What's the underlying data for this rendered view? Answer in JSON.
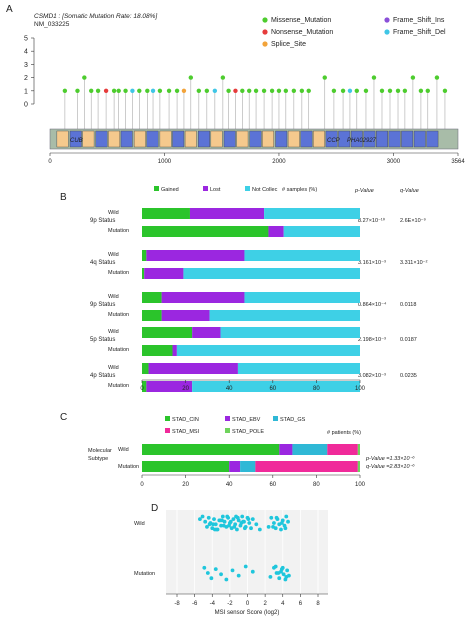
{
  "panel_a": {
    "letter": "A",
    "gene_title": "CSMD1 : [Somatic Mutation Rate: 18.08%]",
    "transcript": "NM_033225",
    "legend": [
      {
        "label": "Missense_Mutation",
        "color": "#4dcc2e"
      },
      {
        "label": "Frame_Shift_Ins",
        "color": "#8a4fd8"
      },
      {
        "label": "Nonsense_Mutation",
        "color": "#e63b3b"
      },
      {
        "label": "Frame_Shift_Del",
        "color": "#3fc6e6"
      },
      {
        "label": "Splice_Site",
        "color": "#f2a33a"
      }
    ],
    "domain_labels": [
      "CUB",
      "CCP",
      "PHA02927"
    ],
    "domain_colors": {
      "backbone": "#a8bca8",
      "cub": "#f5c98d",
      "ccp": "#5b73d6"
    }
  },
  "panel_b": {
    "letter": "B",
    "legend": [
      {
        "label": "Gained",
        "color": "#2bc42b"
      },
      {
        "label": "Lost",
        "color": "#9b27e0"
      },
      {
        "label": "Not Collec",
        "color": "#3ed0e6"
      }
    ],
    "samples_label": "# samples (%)",
    "pvalue_header": "p-Value",
    "qvalue_header": "q-Value"
  },
  "panel_c": {
    "letter": "C",
    "legend": [
      {
        "label": "STAD_CIN",
        "color": "#2bc42b"
      },
      {
        "label": "STAD_EBV",
        "color": "#9b27e0"
      },
      {
        "label": "STAD_GS",
        "color": "#2fb8d6"
      },
      {
        "label": "STAD_MSI",
        "color": "#f02a9a"
      },
      {
        "label": "STAD_POLE",
        "color": "#6fd35c"
      }
    ],
    "group_label": "Molecular Subtype",
    "patients_label": "# patients (%)",
    "pvalue_text": "p-Value =1.33×10⁻⁶",
    "qvalue_text": "q-Value =2.83×10⁻⁶"
  },
  "panel_d": {
    "letter": "D",
    "xlabel": "MSI sensor Score (log2)",
    "point_color": "#1fc6dc"
  },
  "chart_data": [
    {
      "type": "scatter",
      "panel": "A",
      "x_range": [
        0,
        3564
      ],
      "y_range": [
        0,
        5
      ],
      "x_ticks": [
        0,
        1000,
        2000,
        3000,
        3564
      ],
      "y_ticks": [
        0,
        1,
        2,
        3,
        4,
        5
      ],
      "mutations": [
        {
          "x": 130,
          "y": 1,
          "type": "Missense_Mutation"
        },
        {
          "x": 240,
          "y": 1,
          "type": "Missense_Mutation"
        },
        {
          "x": 300,
          "y": 2,
          "type": "Missense_Mutation"
        },
        {
          "x": 360,
          "y": 1,
          "type": "Missense_Mutation"
        },
        {
          "x": 420,
          "y": 1,
          "type": "Missense_Mutation"
        },
        {
          "x": 490,
          "y": 1,
          "type": "Nonsense_Mutation"
        },
        {
          "x": 560,
          "y": 1,
          "type": "Missense_Mutation"
        },
        {
          "x": 600,
          "y": 1,
          "type": "Missense_Mutation"
        },
        {
          "x": 660,
          "y": 1,
          "type": "Missense_Mutation"
        },
        {
          "x": 720,
          "y": 1,
          "type": "Frame_Shift_Del"
        },
        {
          "x": 780,
          "y": 1,
          "type": "Missense_Mutation"
        },
        {
          "x": 850,
          "y": 1,
          "type": "Missense_Mutation"
        },
        {
          "x": 900,
          "y": 1,
          "type": "Frame_Shift_Del"
        },
        {
          "x": 960,
          "y": 1,
          "type": "Missense_Mutation"
        },
        {
          "x": 1040,
          "y": 1,
          "type": "Missense_Mutation"
        },
        {
          "x": 1110,
          "y": 1,
          "type": "Missense_Mutation"
        },
        {
          "x": 1170,
          "y": 1,
          "type": "Splice_Site"
        },
        {
          "x": 1230,
          "y": 2,
          "type": "Missense_Mutation"
        },
        {
          "x": 1300,
          "y": 1,
          "type": "Missense_Mutation"
        },
        {
          "x": 1370,
          "y": 1,
          "type": "Missense_Mutation"
        },
        {
          "x": 1440,
          "y": 1,
          "type": "Frame_Shift_Del"
        },
        {
          "x": 1510,
          "y": 2,
          "type": "Missense_Mutation"
        },
        {
          "x": 1560,
          "y": 1,
          "type": "Missense_Mutation"
        },
        {
          "x": 1620,
          "y": 1,
          "type": "Nonsense_Mutation"
        },
        {
          "x": 1680,
          "y": 1,
          "type": "Missense_Mutation"
        },
        {
          "x": 1740,
          "y": 1,
          "type": "Missense_Mutation"
        },
        {
          "x": 1800,
          "y": 1,
          "type": "Missense_Mutation"
        },
        {
          "x": 1870,
          "y": 1,
          "type": "Missense_Mutation"
        },
        {
          "x": 1940,
          "y": 1,
          "type": "Missense_Mutation"
        },
        {
          "x": 2000,
          "y": 1,
          "type": "Missense_Mutation"
        },
        {
          "x": 2060,
          "y": 1,
          "type": "Missense_Mutation"
        },
        {
          "x": 2130,
          "y": 1,
          "type": "Missense_Mutation"
        },
        {
          "x": 2200,
          "y": 1,
          "type": "Missense_Mutation"
        },
        {
          "x": 2260,
          "y": 1,
          "type": "Missense_Mutation"
        },
        {
          "x": 2400,
          "y": 2,
          "type": "Missense_Mutation"
        },
        {
          "x": 2480,
          "y": 1,
          "type": "Missense_Mutation"
        },
        {
          "x": 2560,
          "y": 1,
          "type": "Missense_Mutation"
        },
        {
          "x": 2620,
          "y": 1,
          "type": "Frame_Shift_Del"
        },
        {
          "x": 2680,
          "y": 1,
          "type": "Missense_Mutation"
        },
        {
          "x": 2760,
          "y": 1,
          "type": "Missense_Mutation"
        },
        {
          "x": 2830,
          "y": 2,
          "type": "Missense_Mutation"
        },
        {
          "x": 2900,
          "y": 1,
          "type": "Missense_Mutation"
        },
        {
          "x": 2970,
          "y": 1,
          "type": "Missense_Mutation"
        },
        {
          "x": 3040,
          "y": 1,
          "type": "Missense_Mutation"
        },
        {
          "x": 3100,
          "y": 1,
          "type": "Missense_Mutation"
        },
        {
          "x": 3170,
          "y": 2,
          "type": "Missense_Mutation"
        },
        {
          "x": 3240,
          "y": 1,
          "type": "Missense_Mutation"
        },
        {
          "x": 3300,
          "y": 1,
          "type": "Missense_Mutation"
        },
        {
          "x": 3380,
          "y": 2,
          "type": "Missense_Mutation"
        },
        {
          "x": 3450,
          "y": 1,
          "type": "Missense_Mutation"
        }
      ]
    },
    {
      "type": "bar",
      "panel": "B",
      "stacked": true,
      "orientation": "horizontal",
      "x_range": [
        0,
        100
      ],
      "x_ticks": [
        0,
        20,
        40,
        60,
        80,
        100
      ],
      "groups": [
        {
          "name": "9p Status",
          "pvalue": "8.27×10⁻¹⁰",
          "qvalue": "2.6E×10⁻⁹",
          "rows": [
            {
              "label": "Wild",
              "values": [
                22,
                34,
                44
              ]
            },
            {
              "label": "Mutation",
              "values": [
                58,
                7,
                35
              ]
            }
          ]
        },
        {
          "name": "4q Status",
          "pvalue": "3.161×10⁻³",
          "qvalue": "3.311×10⁻²",
          "rows": [
            {
              "label": "Wild",
              "values": [
                2,
                45,
                53
              ]
            },
            {
              "label": "Mutation",
              "values": [
                1,
                18,
                81
              ]
            }
          ]
        },
        {
          "name": "9p Status",
          "pvalue": "0.864×10⁻⁴",
          "qvalue": "0.0118",
          "rows": [
            {
              "label": "Wild",
              "values": [
                9,
                38,
                53
              ]
            },
            {
              "label": "Mutation",
              "values": [
                9,
                22,
                69
              ]
            }
          ]
        },
        {
          "name": "5p Status",
          "pvalue": "2.198×10⁻³",
          "qvalue": "0.0187",
          "rows": [
            {
              "label": "Wild",
              "values": [
                23,
                13,
                64
              ]
            },
            {
              "label": "Mutation",
              "values": [
                14,
                2,
                84
              ]
            }
          ]
        },
        {
          "name": "4p Status",
          "pvalue": "3.082×10⁻³",
          "qvalue": "0.0235",
          "rows": [
            {
              "label": "Wild",
              "values": [
                3,
                41,
                56
              ]
            },
            {
              "label": "Mutation",
              "values": [
                2,
                21,
                77
              ]
            }
          ]
        }
      ]
    },
    {
      "type": "bar",
      "panel": "C",
      "stacked": true,
      "orientation": "horizontal",
      "x_range": [
        0,
        100
      ],
      "x_ticks": [
        0,
        20,
        40,
        60,
        80,
        100
      ],
      "rows": [
        {
          "label": "Wild",
          "values": [
            63,
            6,
            16,
            14,
            1
          ]
        },
        {
          "label": "Mutation",
          "values": [
            40,
            5,
            7,
            47,
            1
          ]
        }
      ]
    },
    {
      "type": "scatter",
      "panel": "D",
      "x_range": [
        -8,
        8
      ],
      "x_ticks": [
        -8,
        -6,
        -4,
        -2,
        0,
        2,
        4,
        6,
        8
      ],
      "categories": [
        "Wild",
        "Mutation"
      ],
      "wild_x": [
        -5.1,
        -4.8,
        -4.6,
        -4.4,
        -4.2,
        -4.0,
        -3.8,
        -3.6,
        -3.4,
        -3.2,
        -3.0,
        -2.8,
        -2.6,
        -2.4,
        -2.2,
        -2.0,
        -1.8,
        -1.6,
        -1.4,
        -1.2,
        -1.0,
        -0.8,
        -0.6,
        -0.4,
        -0.2,
        0.0,
        0.2,
        0.4,
        0.6,
        -3.9,
        -3.5,
        -3.1,
        -2.7,
        -2.3,
        -1.9,
        -1.5,
        -1.1,
        -0.7,
        -0.3,
        0.1,
        -4.3,
        -3.7,
        -2.9,
        -2.1,
        -1.3,
        -0.5,
        2.4,
        2.7,
        3.0,
        3.2,
        3.4,
        3.6,
        3.8,
        4.0,
        4.2,
        4.4,
        4.6,
        2.9,
        3.3,
        3.9,
        4.3,
        -5.4,
        1.0,
        1.4
      ],
      "mutation_x": [
        -4.9,
        -4.5,
        -4.1,
        -3.6,
        -3.0,
        -2.4,
        -1.7,
        -1.0,
        -0.2,
        0.6,
        2.6,
        3.0,
        3.3,
        3.6,
        3.9,
        4.1,
        4.3,
        4.5,
        4.7,
        3.2,
        3.8,
        4.4,
        4.0,
        3.5
      ]
    }
  ]
}
